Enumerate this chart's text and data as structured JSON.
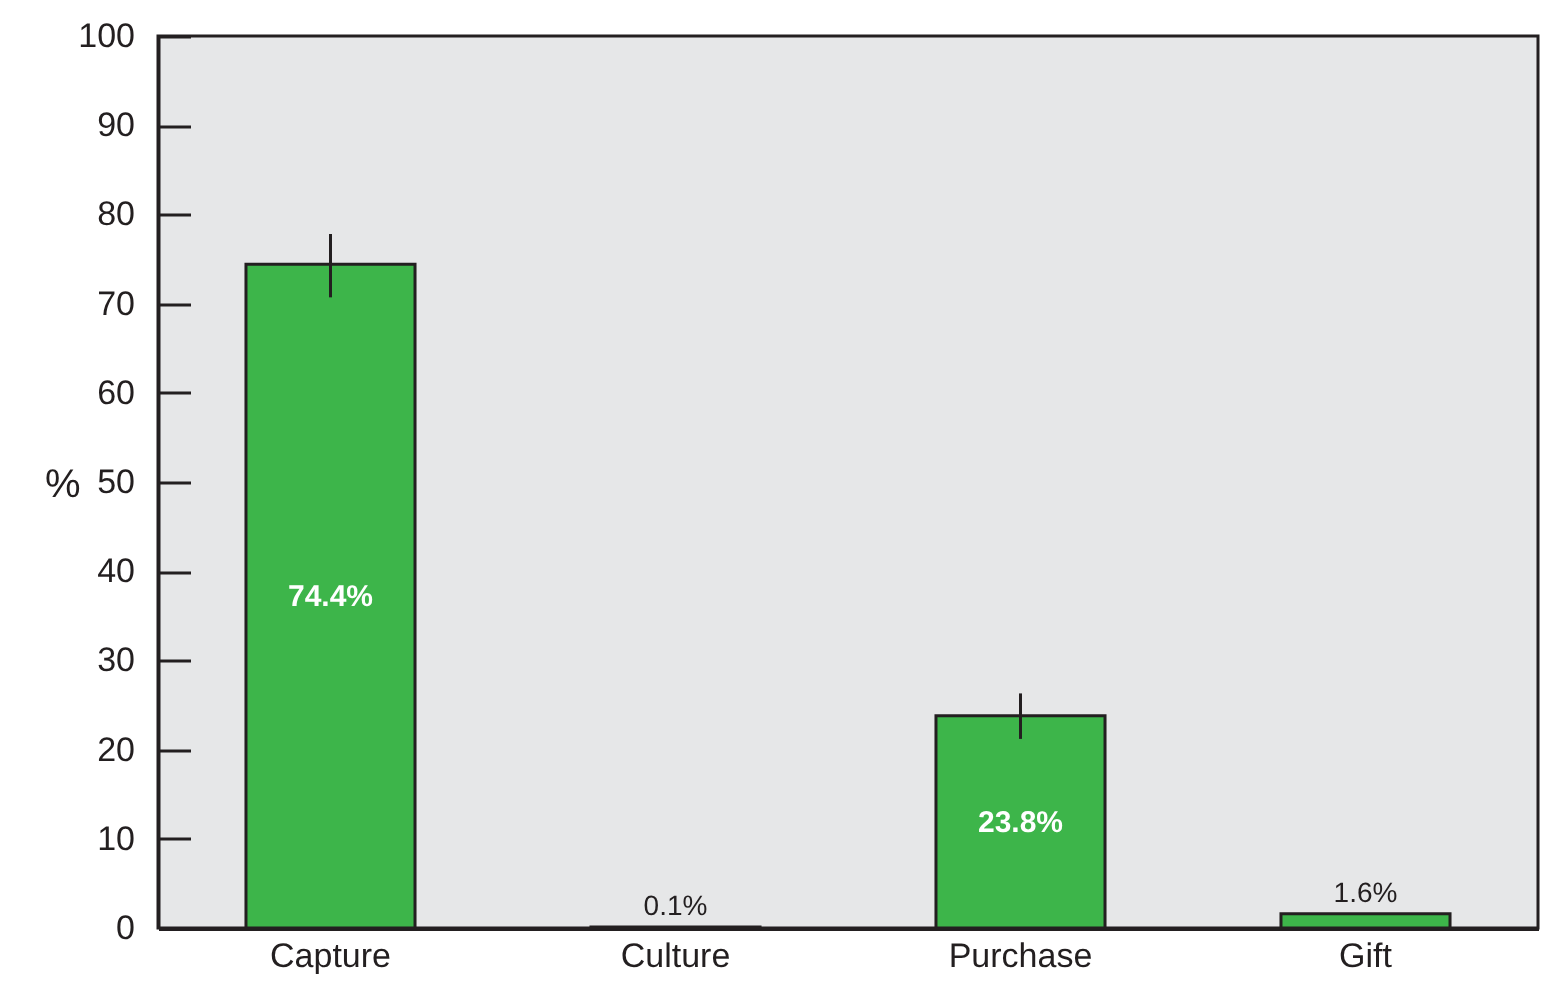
{
  "chart_data": {
    "type": "bar",
    "ylabel": "%",
    "categories": [
      "Capture",
      "Culture",
      "Purchase",
      "Gift"
    ],
    "values": [
      74.4,
      0.1,
      23.8,
      1.6
    ],
    "errors": [
      [
        70.7,
        77.8
      ],
      null,
      [
        21.2,
        26.3
      ],
      null
    ],
    "color": "#3db54a",
    "value_labels": [
      "74.4%",
      "0.1%",
      "23.8%",
      "1.6%"
    ],
    "ylim": [
      0,
      100
    ],
    "yticks": [
      0,
      10,
      20,
      30,
      40,
      50,
      60,
      70,
      80,
      90,
      100
    ],
    "grid": false
  }
}
